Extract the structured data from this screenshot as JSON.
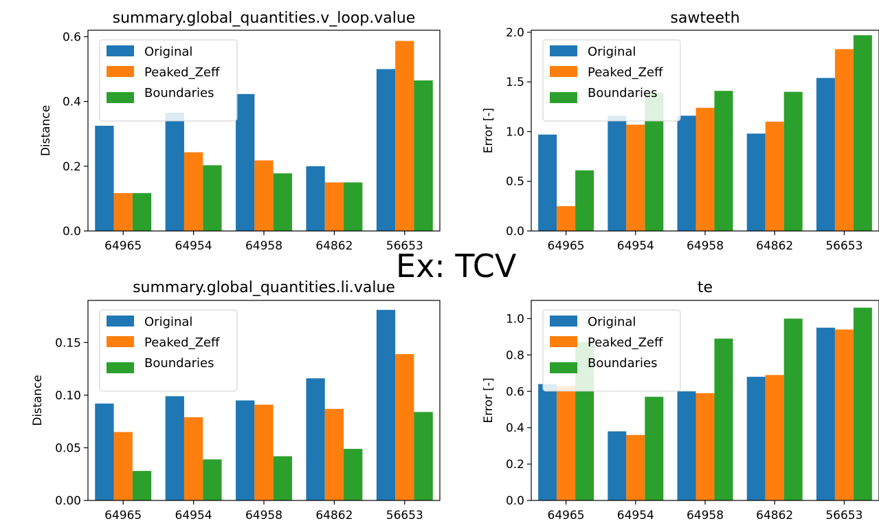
{
  "overlay_title": "Ex: TCV",
  "colors": {
    "Original": "#1f77b4",
    "Peaked_Zeff": "#ff7f0e",
    "Boundaries": "#2ca02c"
  },
  "chart_data": [
    {
      "type": "bar",
      "title": "summary.global_quantities.v_loop.value",
      "ylabel": "Distance",
      "categories": [
        "64965",
        "64954",
        "64958",
        "64862",
        "56653"
      ],
      "ylim": [
        0,
        0.62
      ],
      "yticks": [
        "0.0",
        "0.2",
        "0.4",
        "0.6"
      ],
      "legend": "top-left",
      "series": [
        {
          "name": "Original",
          "values": [
            0.325,
            0.365,
            0.423,
            0.2,
            0.5
          ]
        },
        {
          "name": "Peaked_Zeff",
          "values": [
            0.117,
            0.243,
            0.218,
            0.15,
            0.587
          ]
        },
        {
          "name": "Boundaries",
          "values": [
            0.117,
            0.203,
            0.178,
            0.15,
            0.465
          ]
        }
      ]
    },
    {
      "type": "bar",
      "title": "sawteeth",
      "ylabel": "Error [-]",
      "categories": [
        "64965",
        "64954",
        "64958",
        "64862",
        "56653"
      ],
      "ylim": [
        0,
        2.02
      ],
      "yticks": [
        "0.0",
        "0.5",
        "1.0",
        "1.5",
        "2.0"
      ],
      "legend": "top-left",
      "series": [
        {
          "name": "Original",
          "values": [
            0.97,
            1.16,
            1.16,
            0.98,
            1.54
          ]
        },
        {
          "name": "Peaked_Zeff",
          "values": [
            0.25,
            1.07,
            1.24,
            1.1,
            1.83
          ]
        },
        {
          "name": "Boundaries",
          "values": [
            0.61,
            1.39,
            1.41,
            1.4,
            1.97
          ]
        }
      ]
    },
    {
      "type": "bar",
      "title": "summary.global_quantities.li.value",
      "ylabel": "Distance",
      "categories": [
        "64965",
        "64954",
        "64958",
        "64862",
        "56653"
      ],
      "ylim": [
        0,
        0.19
      ],
      "yticks": [
        "0.00",
        "0.05",
        "0.10",
        "0.15"
      ],
      "legend": "top-left",
      "series": [
        {
          "name": "Original",
          "values": [
            0.092,
            0.099,
            0.095,
            0.116,
            0.181
          ]
        },
        {
          "name": "Peaked_Zeff",
          "values": [
            0.065,
            0.079,
            0.091,
            0.087,
            0.139
          ]
        },
        {
          "name": "Boundaries",
          "values": [
            0.028,
            0.039,
            0.042,
            0.049,
            0.084
          ]
        }
      ]
    },
    {
      "type": "bar",
      "title": "te",
      "ylabel": "Error [-]",
      "categories": [
        "64965",
        "64954",
        "64958",
        "64862",
        "56653"
      ],
      "ylim": [
        0,
        1.1
      ],
      "yticks": [
        "0.0",
        "0.2",
        "0.4",
        "0.6",
        "0.8",
        "1.0"
      ],
      "legend": "top-left",
      "series": [
        {
          "name": "Original",
          "values": [
            0.64,
            0.38,
            0.6,
            0.68,
            0.95
          ]
        },
        {
          "name": "Peaked_Zeff",
          "values": [
            0.63,
            0.36,
            0.59,
            0.69,
            0.94
          ]
        },
        {
          "name": "Boundaries",
          "values": [
            0.87,
            0.57,
            0.89,
            1.0,
            1.06
          ]
        }
      ]
    }
  ]
}
